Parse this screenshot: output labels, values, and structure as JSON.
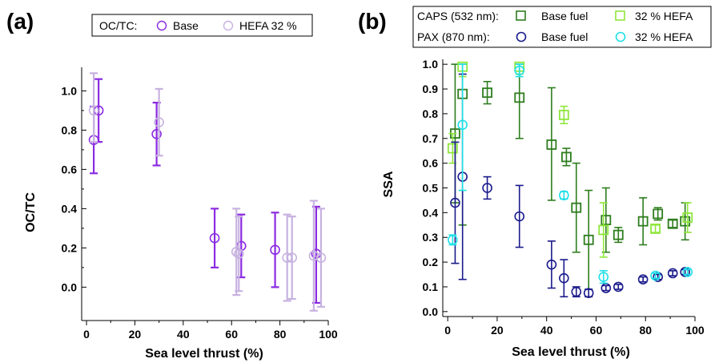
{
  "chart_data": [
    {
      "type": "scatter",
      "panel_label": "(a)",
      "title": "",
      "xlabel": "Sea level thrust (%)",
      "ylabel": "OC/TC",
      "xlim": [
        -2,
        100
      ],
      "ylim": [
        -0.17,
        1.12
      ],
      "xticks": [
        0,
        20,
        40,
        60,
        80,
        100
      ],
      "yticks": [
        0.0,
        0.2,
        0.4,
        0.6,
        0.8,
        1.0
      ],
      "ytick_labels": [
        "0.0",
        "0.2",
        "0.4",
        "0.6",
        "0.8",
        "1.0"
      ],
      "legend": {
        "title": "OC/TC:",
        "placement": "top-center",
        "entries": [
          {
            "label": "Base",
            "marker": "circle",
            "color": "#8b2be2"
          },
          {
            "label": "HEFA 32 %",
            "marker": "circle",
            "color": "#c7b2e0"
          }
        ]
      },
      "series": [
        {
          "name": "Base",
          "marker": "circle",
          "color": "#8b2be2",
          "points": [
            {
              "x": 3,
              "y": 0.75,
              "err_low": 0.58,
              "err_high": 0.92
            },
            {
              "x": 5,
              "y": 0.9,
              "err_low": 0.74,
              "err_high": 1.06
            },
            {
              "x": 29,
              "y": 0.78,
              "err_low": 0.62,
              "err_high": 0.94
            },
            {
              "x": 53,
              "y": 0.25,
              "err_low": 0.1,
              "err_high": 0.4
            },
            {
              "x": 64,
              "y": 0.21,
              "err_low": 0.05,
              "err_high": 0.37
            },
            {
              "x": 78,
              "y": 0.19,
              "err_low": 0.0,
              "err_high": 0.38
            },
            {
              "x": 95,
              "y": 0.17,
              "err_low": -0.08,
              "err_high": 0.41
            }
          ]
        },
        {
          "name": "HEFA 32 %",
          "marker": "circle",
          "color": "#c7b2e0",
          "points": [
            {
              "x": 3,
              "y": 0.9,
              "err_low": 0.74,
              "err_high": 1.09
            },
            {
              "x": 30,
              "y": 0.84,
              "err_low": 0.67,
              "err_high": 1.01
            },
            {
              "x": 62,
              "y": 0.18,
              "err_low": -0.04,
              "err_high": 0.4
            },
            {
              "x": 63,
              "y": 0.17,
              "err_low": -0.02,
              "err_high": 0.36
            },
            {
              "x": 83,
              "y": 0.15,
              "err_low": -0.07,
              "err_high": 0.37
            },
            {
              "x": 85,
              "y": 0.15,
              "err_low": -0.06,
              "err_high": 0.36
            },
            {
              "x": 94,
              "y": 0.16,
              "err_low": -0.12,
              "err_high": 0.44
            },
            {
              "x": 97,
              "y": 0.15,
              "err_low": -0.1,
              "err_high": 0.4
            }
          ]
        }
      ]
    },
    {
      "type": "scatter",
      "panel_label": "(b)",
      "title": "",
      "xlabel": "Sea level thrust (%)",
      "ylabel": "SSA",
      "xlim": [
        -2,
        100
      ],
      "ylim": [
        -0.02,
        1.02
      ],
      "xticks": [
        0,
        20,
        40,
        60,
        80,
        100
      ],
      "yticks": [
        0.0,
        0.1,
        0.2,
        0.3,
        0.4,
        0.5,
        0.6,
        0.7,
        0.8,
        0.9,
        1.0
      ],
      "ytick_labels": [
        "0.0",
        "0.1",
        "0.2",
        "0.3",
        "0.4",
        "0.5",
        "0.6",
        "0.7",
        "0.8",
        "0.9",
        "1.0"
      ],
      "legend": {
        "placement": "top",
        "rows": [
          {
            "title": "CAPS (532 nm):",
            "entries": [
              {
                "label": "Base fuel",
                "marker": "square",
                "color": "#2e7d1e"
              },
              {
                "label": "32 % HEFA",
                "marker": "square",
                "color": "#8fe63c"
              }
            ]
          },
          {
            "title": "PAX (870 nm):",
            "entries": [
              {
                "label": "Base fuel",
                "marker": "circle",
                "color": "#1a1a8c"
              },
              {
                "label": "32 % HEFA",
                "marker": "circle",
                "color": "#1ee0e8"
              }
            ]
          }
        ]
      },
      "series": [
        {
          "name": "CAPS Base fuel",
          "marker": "square",
          "color": "#2e7d1e",
          "points": [
            {
              "x": 3,
              "y": 0.72,
              "err_low": 0.44,
              "err_high": 1.0
            },
            {
              "x": 6,
              "y": 0.88,
              "err_low": 0.35,
              "err_high": 1.0
            },
            {
              "x": 16,
              "y": 0.885,
              "err_low": 0.84,
              "err_high": 0.93
            },
            {
              "x": 29,
              "y": 0.865,
              "err_low": 0.7,
              "err_high": 1.0
            },
            {
              "x": 42,
              "y": 0.675,
              "err_low": 0.45,
              "err_high": 0.905
            },
            {
              "x": 48,
              "y": 0.625,
              "err_low": 0.59,
              "err_high": 0.66
            },
            {
              "x": 52,
              "y": 0.42,
              "err_low": 0.24,
              "err_high": 0.6
            },
            {
              "x": 57,
              "y": 0.29,
              "err_low": 0.09,
              "err_high": 0.49
            },
            {
              "x": 64,
              "y": 0.37,
              "err_low": 0.24,
              "err_high": 0.5
            },
            {
              "x": 69,
              "y": 0.31,
              "err_low": 0.28,
              "err_high": 0.34
            },
            {
              "x": 79,
              "y": 0.365,
              "err_low": 0.27,
              "err_high": 0.46
            },
            {
              "x": 85,
              "y": 0.395,
              "err_low": 0.37,
              "err_high": 0.42
            },
            {
              "x": 91,
              "y": 0.355,
              "err_low": 0.34,
              "err_high": 0.37
            },
            {
              "x": 96,
              "y": 0.365,
              "err_low": 0.29,
              "err_high": 0.44
            }
          ]
        },
        {
          "name": "CAPS 32 % HEFA",
          "marker": "square",
          "color": "#8fe63c",
          "points": [
            {
              "x": 2,
              "y": 0.66,
              "err_low": 0.6,
              "err_high": 0.72
            },
            {
              "x": 6,
              "y": 0.99,
              "err_low": 0.95,
              "err_high": 1.0
            },
            {
              "x": 29,
              "y": 0.99,
              "err_low": 0.96,
              "err_high": 1.0
            },
            {
              "x": 47,
              "y": 0.795,
              "err_low": 0.76,
              "err_high": 0.83
            },
            {
              "x": 63,
              "y": 0.33,
              "err_low": 0.22,
              "err_high": 0.44
            },
            {
              "x": 84,
              "y": 0.335,
              "err_low": 0.32,
              "err_high": 0.35
            },
            {
              "x": 97,
              "y": 0.38,
              "err_low": 0.32,
              "err_high": 0.44
            }
          ]
        },
        {
          "name": "PAX Base fuel",
          "marker": "circle",
          "color": "#1a1a8c",
          "points": [
            {
              "x": 3,
              "y": 0.44,
              "err_low": 0.195,
              "err_high": 0.685
            },
            {
              "x": 6,
              "y": 0.545,
              "err_low": 0.13,
              "err_high": 0.96
            },
            {
              "x": 16,
              "y": 0.5,
              "err_low": 0.455,
              "err_high": 0.545
            },
            {
              "x": 29,
              "y": 0.385,
              "err_low": 0.26,
              "err_high": 0.51
            },
            {
              "x": 42,
              "y": 0.19,
              "err_low": 0.095,
              "err_high": 0.285
            },
            {
              "x": 47,
              "y": 0.135,
              "err_low": 0.06,
              "err_high": 0.21
            },
            {
              "x": 52,
              "y": 0.08,
              "err_low": 0.06,
              "err_high": 0.1
            },
            {
              "x": 57,
              "y": 0.075,
              "err_low": 0.06,
              "err_high": 0.09
            },
            {
              "x": 64,
              "y": 0.095,
              "err_low": 0.085,
              "err_high": 0.105
            },
            {
              "x": 69,
              "y": 0.1,
              "err_low": 0.09,
              "err_high": 0.11
            },
            {
              "x": 79,
              "y": 0.13,
              "err_low": 0.12,
              "err_high": 0.14
            },
            {
              "x": 85,
              "y": 0.14,
              "err_low": 0.13,
              "err_high": 0.15
            },
            {
              "x": 91,
              "y": 0.155,
              "err_low": 0.145,
              "err_high": 0.165
            },
            {
              "x": 96,
              "y": 0.16,
              "err_low": 0.15,
              "err_high": 0.17
            }
          ]
        },
        {
          "name": "PAX 32 % HEFA",
          "marker": "circle",
          "color": "#1ee0e8",
          "points": [
            {
              "x": 2,
              "y": 0.29,
              "err_low": 0.27,
              "err_high": 0.31
            },
            {
              "x": 6,
              "y": 0.755,
              "err_low": 0.49,
              "err_high": 1.0
            },
            {
              "x": 29,
              "y": 0.975,
              "err_low": 0.95,
              "err_high": 1.0
            },
            {
              "x": 47,
              "y": 0.47,
              "err_low": 0.455,
              "err_high": 0.485
            },
            {
              "x": 63,
              "y": 0.14,
              "err_low": 0.115,
              "err_high": 0.165
            },
            {
              "x": 84,
              "y": 0.145,
              "err_low": 0.135,
              "err_high": 0.155
            },
            {
              "x": 97,
              "y": 0.16,
              "err_low": 0.15,
              "err_high": 0.17
            }
          ]
        }
      ]
    }
  ]
}
